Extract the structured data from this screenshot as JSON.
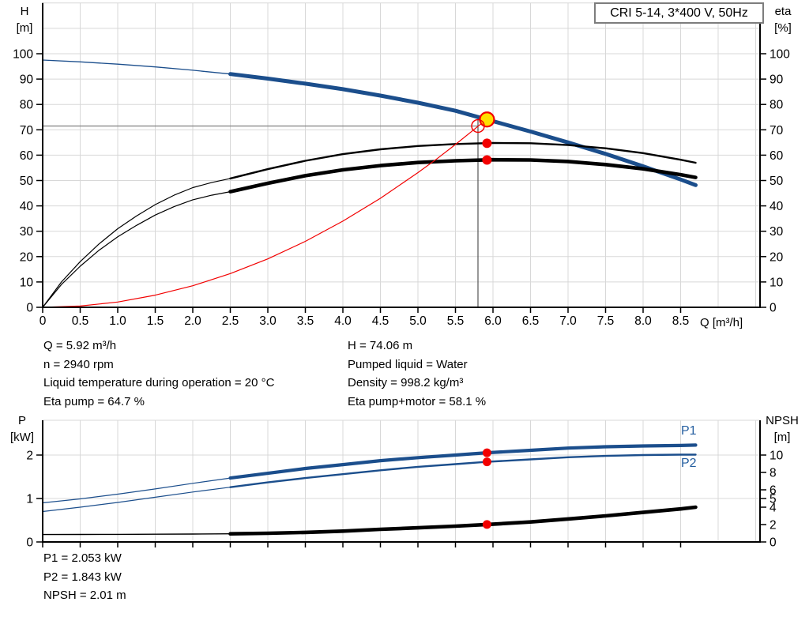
{
  "title_box": {
    "label": "CRI 5-14, 3*400 V, 50Hz"
  },
  "colors": {
    "curve_blue": "#1b4e8c",
    "label_blue": "#235d9f",
    "red": "#f20000",
    "yellow": "#ffdf00",
    "black": "#000000",
    "grid": "#d8d8d8",
    "guide_horizontal": "#808080",
    "guide_vertical": "#555555"
  },
  "info_top": {
    "col1": [
      "Q = 5.92 m³/h",
      "n = 2940 rpm",
      "Liquid temperature during operation = 20 °C",
      "Eta pump = 64.7 %"
    ],
    "col2": [
      "H = 74.06 m",
      "Pumped liquid = Water",
      "Density = 998.2 kg/m³",
      "Eta pump+motor = 58.1 %"
    ]
  },
  "info_bottom": [
    "P1 = 2.053 kW",
    "P2 = 1.843 kW",
    "NPSH = 2.01 m"
  ],
  "chart_data": [
    {
      "type": "line",
      "title": "CRI 5-14, 3*400 V, 50Hz",
      "x_axis": {
        "label": "Q [m³/h]",
        "min": 0,
        "max": 9.56,
        "tick_labels": [
          "0",
          "0.5",
          "1.0",
          "1.5",
          "2.0",
          "2.5",
          "3.0",
          "3.5",
          "4.0",
          "4.5",
          "5.0",
          "5.5",
          "6.0",
          "6.5",
          "7.0",
          "7.5",
          "8.0",
          "8.5"
        ]
      },
      "y_left": {
        "label": "H",
        "unit": "[m]",
        "min": 0,
        "max": 120,
        "tick_labels": [
          "0",
          "10",
          "20",
          "30",
          "40",
          "50",
          "60",
          "70",
          "80",
          "90",
          "100"
        ]
      },
      "y_right": {
        "label": "eta",
        "unit": "[%]",
        "min": 0,
        "max": 120,
        "tick_labels": [
          "0",
          "10",
          "20",
          "30",
          "40",
          "50",
          "60",
          "70",
          "80",
          "90",
          "100"
        ]
      },
      "grid": true,
      "series": [
        {
          "name": "pump-curve-h-q",
          "color": "#1b4e8c",
          "axis": "left",
          "width_thin": 1.3,
          "width_thick": 5,
          "thick_from": 2.5,
          "points": [
            [
              0,
              97.5
            ],
            [
              0.5,
              96.8
            ],
            [
              1,
              95.9
            ],
            [
              1.5,
              94.8
            ],
            [
              2,
              93.5
            ],
            [
              2.5,
              92.0
            ],
            [
              3,
              90.2
            ],
            [
              3.5,
              88.2
            ],
            [
              4,
              86.0
            ],
            [
              4.5,
              83.5
            ],
            [
              5,
              80.7
            ],
            [
              5.5,
              77.5
            ],
            [
              5.92,
              74.06
            ],
            [
              6.5,
              69.3
            ],
            [
              7,
              65.0
            ],
            [
              7.5,
              60.5
            ],
            [
              8,
              55.6
            ],
            [
              8.5,
              50.4
            ],
            [
              8.7,
              48.2
            ]
          ]
        },
        {
          "name": "eta-pump",
          "color": "#000000",
          "axis": "left",
          "width_thin": 1.2,
          "width_thick": 2.4,
          "thick_from": 2.5,
          "points": [
            [
              0,
              0
            ],
            [
              0.25,
              10
            ],
            [
              0.5,
              18
            ],
            [
              0.75,
              25
            ],
            [
              1,
              31
            ],
            [
              1.25,
              36
            ],
            [
              1.5,
              40.5
            ],
            [
              1.75,
              44.2
            ],
            [
              2,
              47.2
            ],
            [
              2.25,
              49.2
            ],
            [
              2.5,
              50.8
            ],
            [
              3,
              54.5
            ],
            [
              3.5,
              57.8
            ],
            [
              4,
              60.4
            ],
            [
              4.5,
              62.3
            ],
            [
              5,
              63.6
            ],
            [
              5.5,
              64.4
            ],
            [
              6,
              64.8
            ],
            [
              6.5,
              64.7
            ],
            [
              7,
              64.0
            ],
            [
              7.5,
              62.7
            ],
            [
              8,
              60.8
            ],
            [
              8.5,
              58.2
            ],
            [
              8.7,
              57.0
            ]
          ]
        },
        {
          "name": "eta-pump-plus-motor",
          "color": "#000000",
          "axis": "left",
          "width_thin": 1.2,
          "width_thick": 4.6,
          "thick_from": 2.5,
          "points": [
            [
              0,
              0
            ],
            [
              0.25,
              9
            ],
            [
              0.5,
              16.2
            ],
            [
              0.75,
              22.5
            ],
            [
              1,
              27.8
            ],
            [
              1.25,
              32.3
            ],
            [
              1.5,
              36.4
            ],
            [
              1.75,
              39.7
            ],
            [
              2,
              42.4
            ],
            [
              2.25,
              44.2
            ],
            [
              2.5,
              45.6
            ],
            [
              3,
              48.9
            ],
            [
              3.5,
              51.9
            ],
            [
              4,
              54.2
            ],
            [
              4.5,
              55.9
            ],
            [
              5,
              57.1
            ],
            [
              5.5,
              57.8
            ],
            [
              6,
              58.2
            ],
            [
              6.5,
              58.1
            ],
            [
              7,
              57.5
            ],
            [
              7.5,
              56.3
            ],
            [
              8,
              54.6
            ],
            [
              8.5,
              52.3
            ],
            [
              8.7,
              51.2
            ]
          ]
        },
        {
          "name": "system-curve",
          "color": "#f20000",
          "axis": "left",
          "width_thin": 1.2,
          "width_thick": 1.2,
          "thick_from": 99,
          "points": [
            [
              0,
              0
            ],
            [
              0.5,
              0.5
            ],
            [
              1,
              2.1
            ],
            [
              1.5,
              4.8
            ],
            [
              2,
              8.5
            ],
            [
              2.5,
              13.3
            ],
            [
              3,
              19.1
            ],
            [
              3.5,
              26.0
            ],
            [
              4,
              34.0
            ],
            [
              4.5,
              43.0
            ],
            [
              5,
              53.1
            ],
            [
              5.25,
              58.5
            ],
            [
              5.5,
              64.2
            ],
            [
              5.75,
              70.2
            ],
            [
              5.93,
              74.5
            ]
          ]
        }
      ],
      "guides": {
        "h_line_value": 71.5,
        "v_line_value": 5.8
      },
      "markers": [
        {
          "name": "duty-point-actual",
          "style": "yellow-ring",
          "x": 5.92,
          "y": 74.06
        },
        {
          "name": "duty-point-requested",
          "style": "red-open",
          "x": 5.8,
          "y": 71.5
        },
        {
          "name": "eta-pump-duty-point",
          "style": "red-dot",
          "x": 5.92,
          "y": 64.7
        },
        {
          "name": "eta-pump-motor-duty-point",
          "style": "red-dot",
          "x": 5.92,
          "y": 58.1
        }
      ]
    },
    {
      "type": "line",
      "title": "Power and NPSH curves",
      "x_axis": {
        "label": "Q [m³/h]",
        "min": 0,
        "max": 9.56,
        "tick_labels": []
      },
      "y_left": {
        "label": "P",
        "unit": "[kW]",
        "min": 0,
        "max": 2.8,
        "tick_labels": [
          "0",
          "1",
          "2"
        ]
      },
      "y_right": {
        "label": "NPSH",
        "unit": "[m]",
        "min": 0,
        "max": 14,
        "tick_labels": [
          "0",
          "2",
          "4",
          "5",
          "6",
          "8",
          "10"
        ]
      },
      "grid": true,
      "series": [
        {
          "name": "p1-curve",
          "label": "P1",
          "color": "#1b4e8c",
          "axis": "left",
          "width_thin": 1.2,
          "width_thick": 4.2,
          "thick_from": 2.5,
          "points": [
            [
              0,
              0.9
            ],
            [
              0.5,
              0.99
            ],
            [
              1,
              1.1
            ],
            [
              1.5,
              1.22
            ],
            [
              2,
              1.35
            ],
            [
              2.5,
              1.47
            ],
            [
              3,
              1.58
            ],
            [
              3.5,
              1.69
            ],
            [
              4,
              1.78
            ],
            [
              4.5,
              1.87
            ],
            [
              5,
              1.94
            ],
            [
              5.5,
              2.0
            ],
            [
              5.92,
              2.053
            ],
            [
              6.5,
              2.11
            ],
            [
              7,
              2.16
            ],
            [
              7.5,
              2.19
            ],
            [
              8,
              2.21
            ],
            [
              8.5,
              2.22
            ],
            [
              8.7,
              2.23
            ]
          ]
        },
        {
          "name": "p2-curve",
          "label": "P2",
          "color": "#1b4e8c",
          "axis": "left",
          "width_thin": 1.2,
          "width_thick": 2.4,
          "thick_from": 2.5,
          "points": [
            [
              0,
              0.7
            ],
            [
              0.5,
              0.8
            ],
            [
              1,
              0.91
            ],
            [
              1.5,
              1.03
            ],
            [
              2,
              1.15
            ],
            [
              2.5,
              1.26
            ],
            [
              3,
              1.37
            ],
            [
              3.5,
              1.47
            ],
            [
              4,
              1.56
            ],
            [
              4.5,
              1.65
            ],
            [
              5,
              1.73
            ],
            [
              5.5,
              1.79
            ],
            [
              5.92,
              1.843
            ],
            [
              6.5,
              1.9
            ],
            [
              7,
              1.95
            ],
            [
              7.5,
              1.98
            ],
            [
              8,
              2.0
            ],
            [
              8.5,
              2.01
            ],
            [
              8.7,
              2.01
            ]
          ]
        },
        {
          "name": "npsh-curve",
          "color": "#000000",
          "axis": "right",
          "width_thin": 1.4,
          "width_thick": 4.6,
          "thick_from": 2.5,
          "points": [
            [
              0,
              0.85
            ],
            [
              0.5,
              0.86
            ],
            [
              1,
              0.87
            ],
            [
              1.5,
              0.89
            ],
            [
              2,
              0.91
            ],
            [
              2.5,
              0.94
            ],
            [
              3,
              1.0
            ],
            [
              3.5,
              1.1
            ],
            [
              4,
              1.25
            ],
            [
              4.5,
              1.45
            ],
            [
              5,
              1.63
            ],
            [
              5.5,
              1.82
            ],
            [
              5.92,
              2.01
            ],
            [
              6.5,
              2.3
            ],
            [
              7,
              2.65
            ],
            [
              7.5,
              3.0
            ],
            [
              8,
              3.4
            ],
            [
              8.5,
              3.8
            ],
            [
              8.7,
              4.0
            ]
          ]
        }
      ],
      "guides": {},
      "markers": [
        {
          "name": "p1-duty-point",
          "style": "red-dot-small",
          "axis": "left",
          "x": 5.92,
          "y": 2.053
        },
        {
          "name": "p2-duty-point",
          "style": "red-dot-small",
          "axis": "left",
          "x": 5.92,
          "y": 1.843
        },
        {
          "name": "npsh-duty-point",
          "style": "red-dot-small",
          "axis": "right",
          "x": 5.92,
          "y": 2.01
        }
      ]
    }
  ]
}
